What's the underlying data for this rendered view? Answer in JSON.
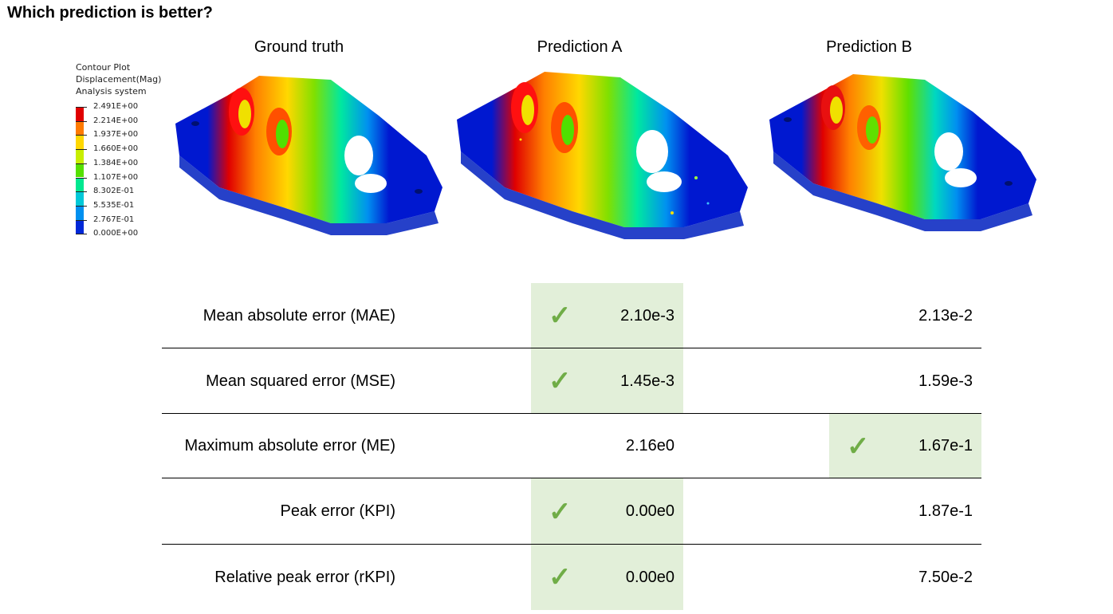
{
  "title": "Which prediction is better?",
  "columns": [
    "Ground truth",
    "Prediction A",
    "Prediction B"
  ],
  "legend": {
    "lines": [
      "Contour Plot",
      "Displacement(Mag)",
      "Analysis system"
    ],
    "values": [
      "2.491E+00",
      "2.214E+00",
      "1.937E+00",
      "1.660E+00",
      "1.384E+00",
      "1.107E+00",
      "8.302E-01",
      "5.535E-01",
      "2.767E-01",
      "0.000E+00"
    ],
    "colors": [
      "#e00000",
      "#ff7a00",
      "#ffd800",
      "#c8ee00",
      "#55e000",
      "#00e890",
      "#00c8d8",
      "#0090f0",
      "#0028d8"
    ]
  },
  "metrics": [
    {
      "label": "Mean absolute error (MAE)",
      "a": "2.10e-3",
      "b": "2.13e-2",
      "best": "a"
    },
    {
      "label": "Mean squared error (MSE)",
      "a": "1.45e-3",
      "b": "1.59e-3",
      "best": "a"
    },
    {
      "label": "Maximum absolute error (ME)",
      "a": "2.16e0",
      "b": "1.67e-1",
      "best": "b"
    },
    {
      "label": "Peak error (KPI)",
      "a": "0.00e0",
      "b": "1.87e-1",
      "best": "a"
    },
    {
      "label": "Relative peak error (rKPI)",
      "a": "0.00e0",
      "b": "7.50e-2",
      "best": "a"
    }
  ],
  "check_symbol": "✓"
}
